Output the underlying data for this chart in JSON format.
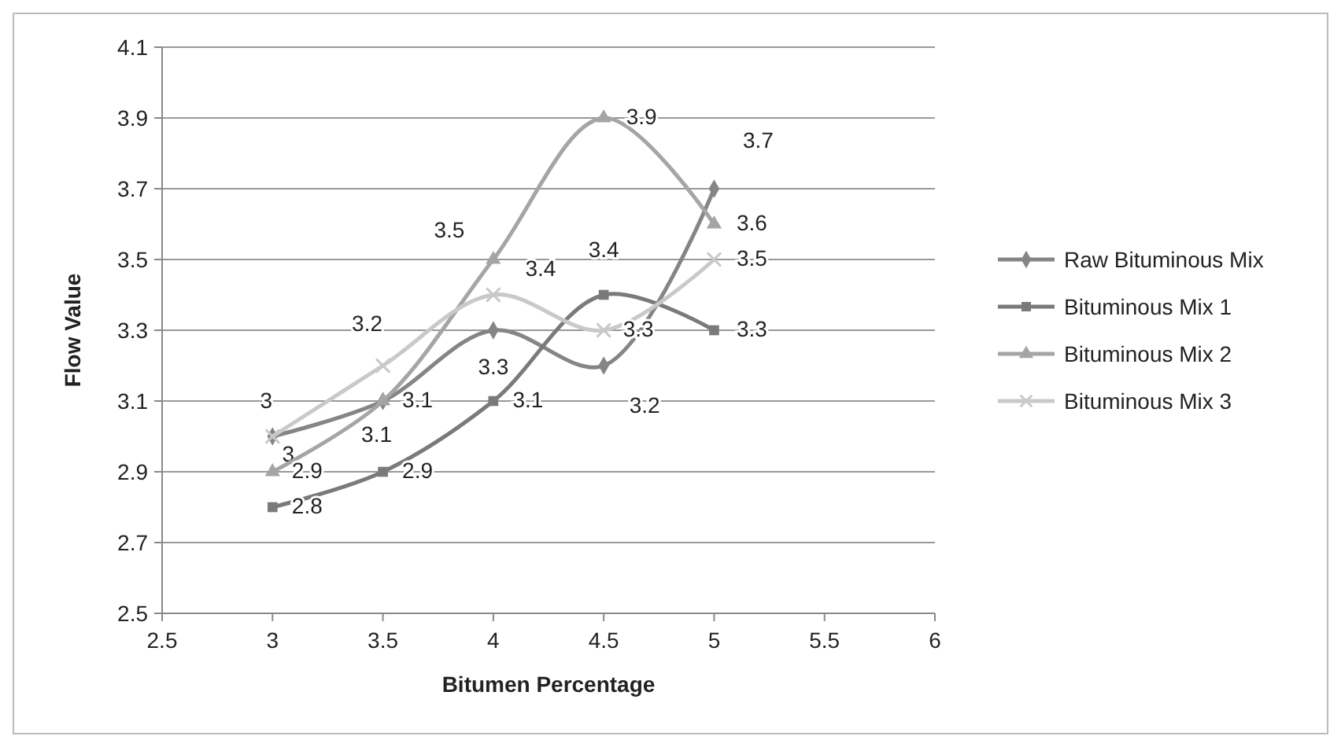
{
  "chart_data": {
    "type": "line",
    "xlabel": "Bitumen Percentage",
    "ylabel": "Flow Value",
    "x": [
      3,
      3.5,
      4,
      4.5,
      5
    ],
    "xlim": [
      2.5,
      6
    ],
    "xticks": [
      2.5,
      3,
      3.5,
      4,
      4.5,
      5,
      5.5,
      6
    ],
    "ylim": [
      2.5,
      4.1
    ],
    "yticks": [
      2.5,
      2.7,
      2.9,
      3.1,
      3.3,
      3.5,
      3.7,
      3.9,
      4.1
    ],
    "grid": "y",
    "legend": "right",
    "data_labels": true,
    "line_style": "solid",
    "series": [
      {
        "name": "Raw Bituminous Mix",
        "color": "#858585",
        "marker": "diamond",
        "values": [
          3,
          3.1,
          3.3,
          3.2,
          3.7
        ]
      },
      {
        "name": "Bituminous Mix 1",
        "color": "#7a7a7a",
        "marker": "square",
        "values": [
          2.8,
          2.9,
          3.1,
          3.4,
          3.3
        ]
      },
      {
        "name": "Bituminous Mix 2",
        "color": "#a5a5a5",
        "marker": "triangle",
        "values": [
          2.9,
          3.1,
          3.5,
          3.9,
          3.6
        ]
      },
      {
        "name": "Bituminous Mix 3",
        "color": "#c9c9c9",
        "marker": "cross",
        "values": [
          3,
          3.2,
          3.4,
          3.3,
          3.5
        ]
      }
    ]
  }
}
